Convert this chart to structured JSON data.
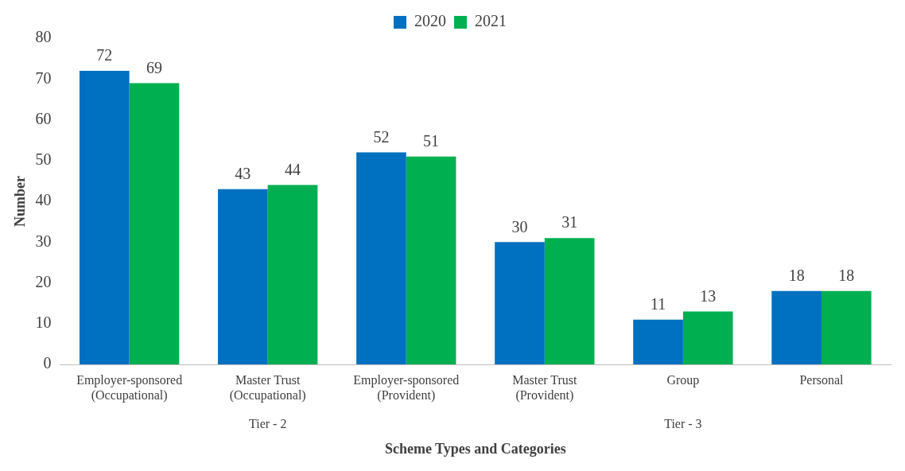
{
  "chart_data": {
    "type": "bar",
    "xlabel": "Scheme Types and Categories",
    "ylabel": "Number",
    "categories": [
      "Employer-sponsored (Occupational)",
      "Master Trust (Occupational)",
      "Employer-sponsored (Provident)",
      "Master Trust (Provident)",
      "Group",
      "Personal"
    ],
    "series": [
      {
        "name": "2020",
        "color": "#0070c0",
        "values": [
          72,
          43,
          52,
          30,
          11,
          18
        ]
      },
      {
        "name": "2021",
        "color": "#00b050",
        "values": [
          69,
          44,
          51,
          31,
          13,
          18
        ]
      }
    ],
    "ylim": [
      0,
      80
    ],
    "yticks": [
      0,
      10,
      20,
      30,
      40,
      50,
      60,
      70,
      80
    ],
    "grid": false,
    "legend": "top",
    "data_labels": true,
    "annotations": [
      "Tier - 2",
      "Tier - 3"
    ]
  }
}
